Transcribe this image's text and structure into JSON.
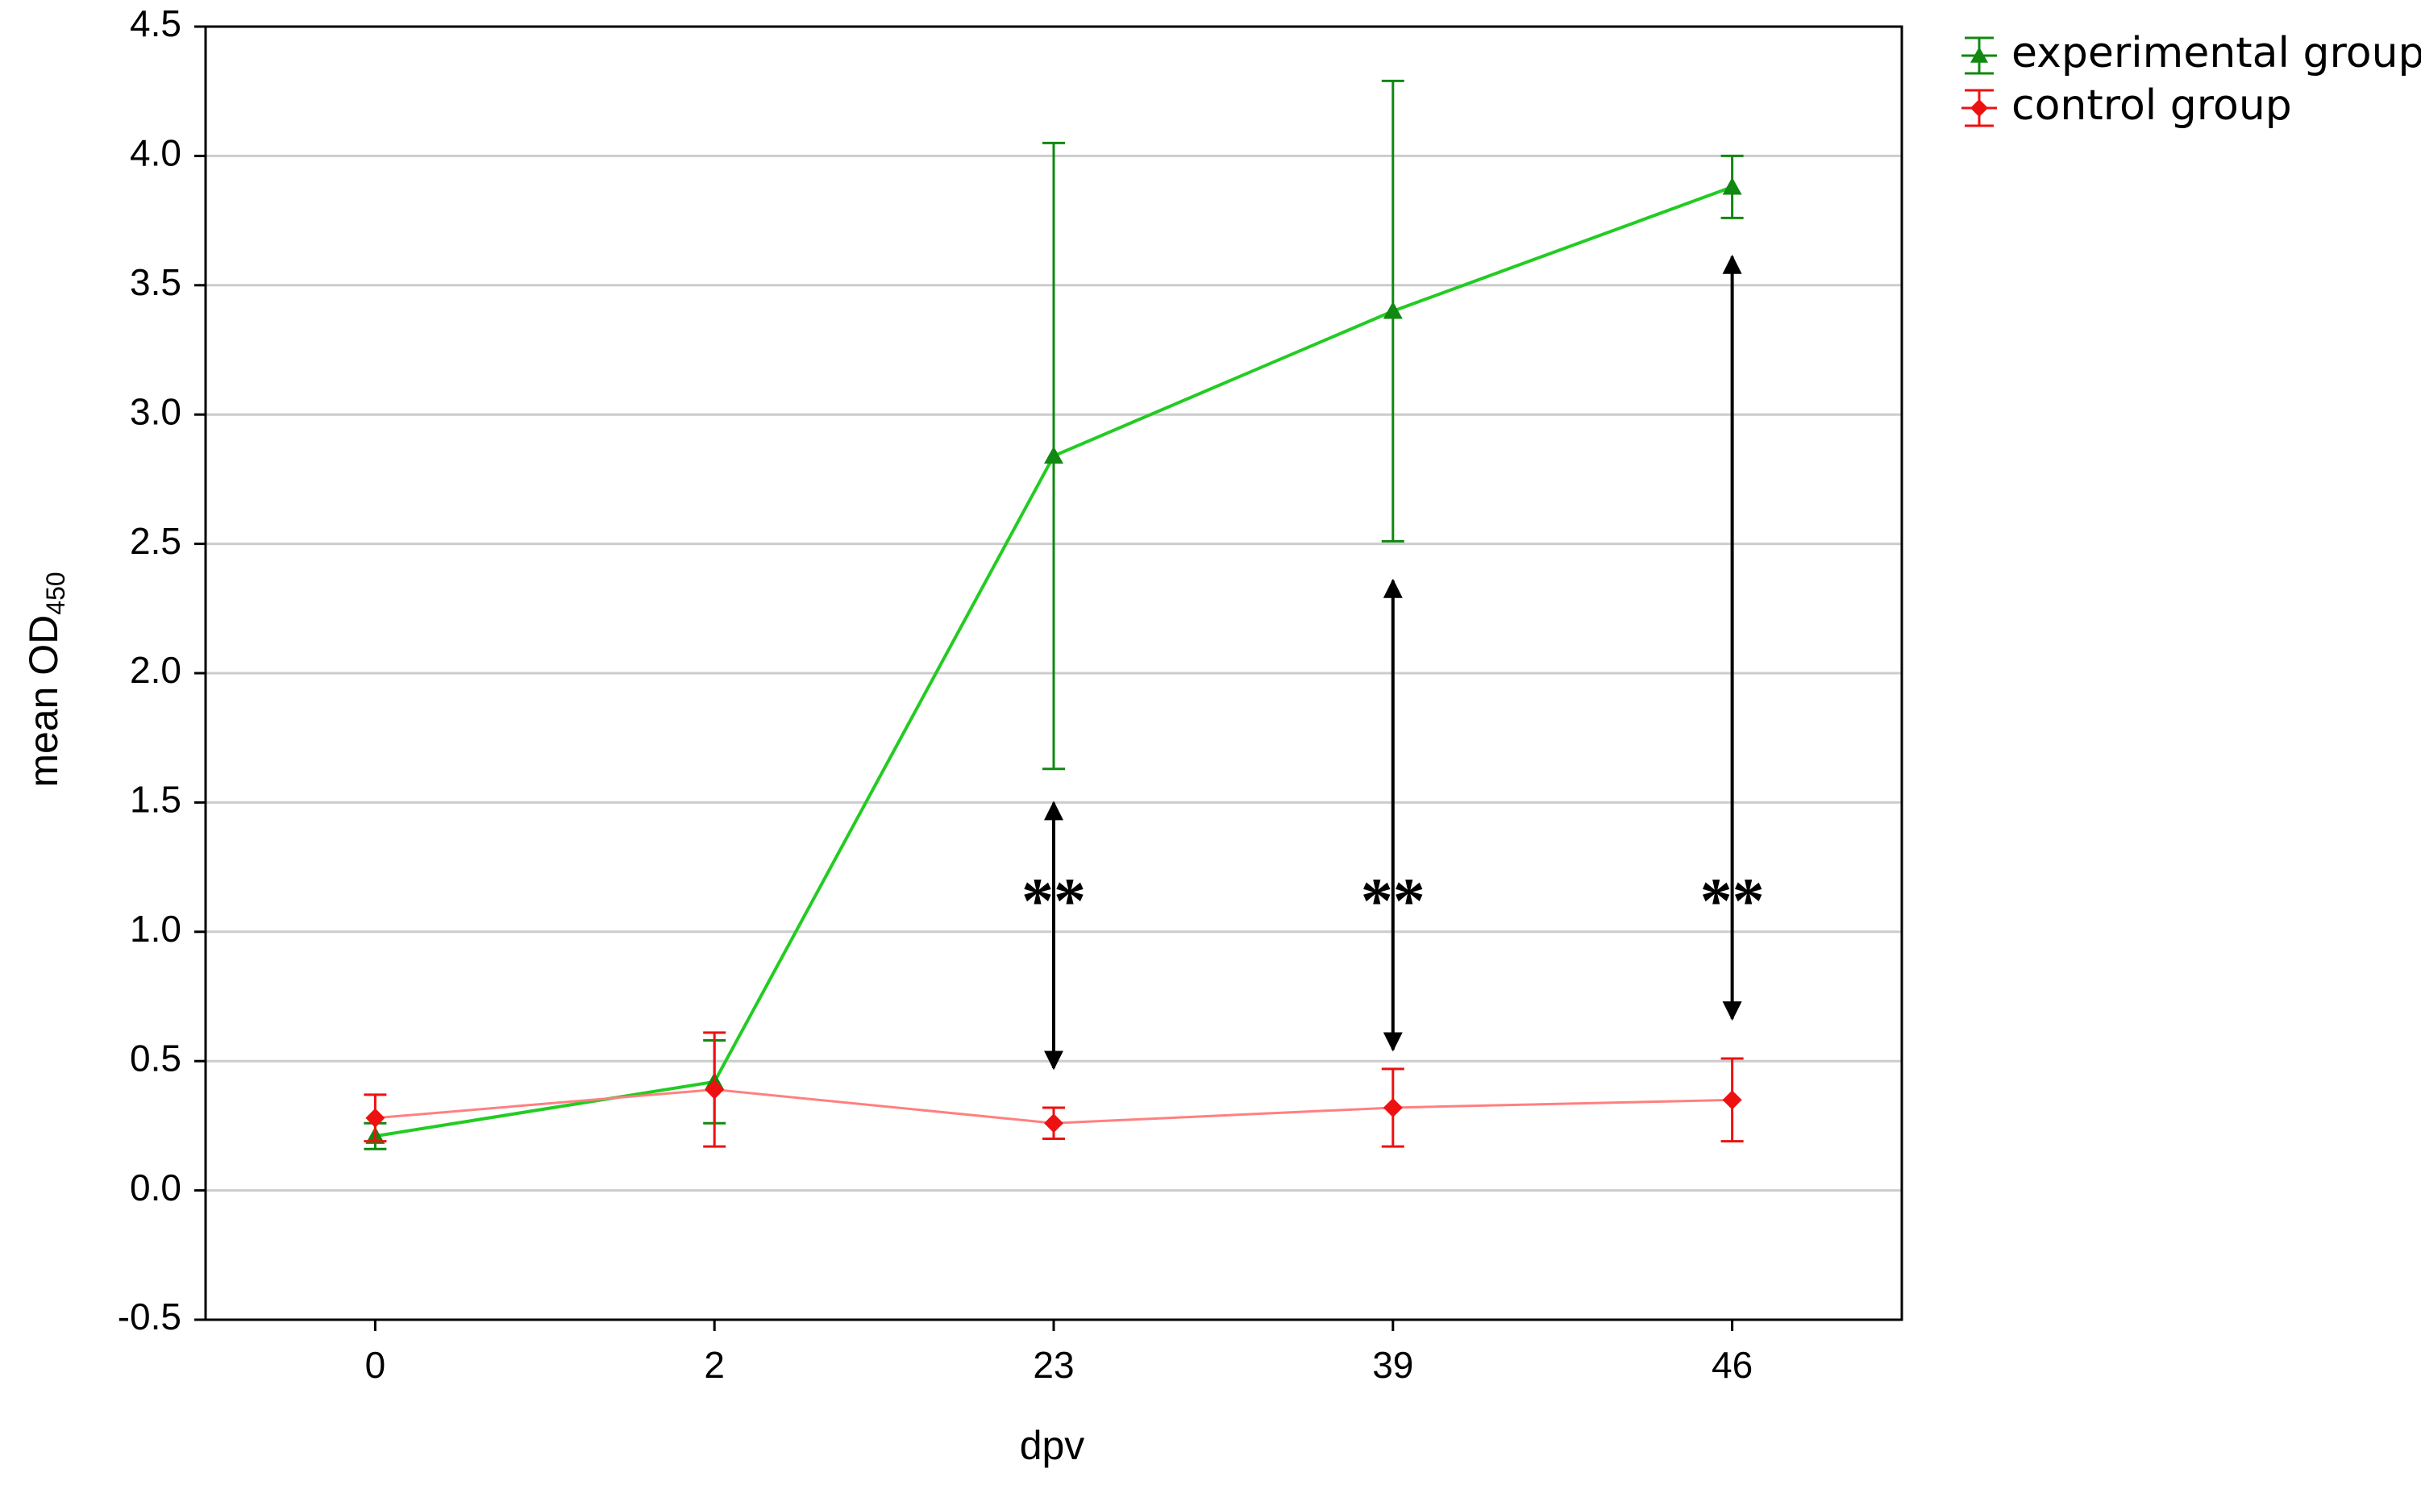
{
  "chart_data": {
    "type": "line",
    "x_label": "dpv",
    "y_label": {
      "text": "mean OD",
      "subscript": "450"
    },
    "categories": [
      "0",
      "2",
      "23",
      "39",
      "46"
    ],
    "ylim": [
      -0.5,
      4.5
    ],
    "yticks": [
      -0.5,
      {
        "value": 0,
        "label": "0.0"
      },
      0.5,
      {
        "value": 1,
        "label": "1.0"
      },
      1.5,
      {
        "value": 2,
        "label": "2.0"
      },
      2.5,
      {
        "value": 3,
        "label": "3.0"
      },
      3.5,
      {
        "value": 4,
        "label": "4.0"
      },
      4.5
    ],
    "grid": true,
    "legend": "outside-top-right",
    "series": [
      {
        "name": "experimental group",
        "color": "#22cc22",
        "error_color": "#118811",
        "marker": "triangle",
        "values": [
          0.21,
          0.42,
          2.84,
          3.4,
          3.88
        ],
        "errors": [
          0.05,
          0.16,
          1.21,
          0.89,
          0.12
        ]
      },
      {
        "name": "control group",
        "color": "#ff8080",
        "error_color": "#ee1111",
        "marker": "diamond",
        "values": [
          0.28,
          0.39,
          0.26,
          0.32,
          0.35
        ],
        "errors": [
          0.09,
          0.22,
          0.06,
          0.15,
          0.16
        ]
      }
    ],
    "annotations": [
      "**",
      "**",
      "**"
    ]
  }
}
